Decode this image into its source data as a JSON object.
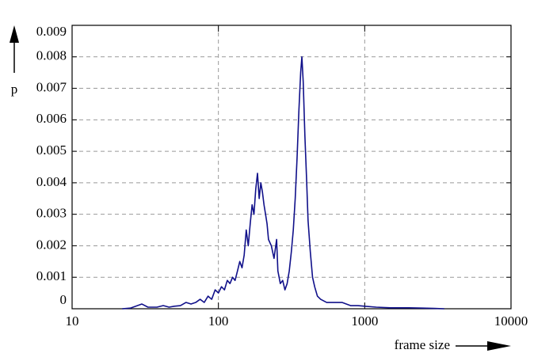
{
  "chart_data": {
    "type": "line",
    "x_label": "frame size",
    "y_label": "p",
    "x": [
      22,
      25,
      28,
      30,
      33,
      38,
      42,
      46,
      50,
      55,
      60,
      65,
      70,
      75,
      80,
      85,
      90,
      95,
      100,
      105,
      110,
      115,
      120,
      125,
      130,
      135,
      140,
      145,
      150,
      155,
      160,
      165,
      170,
      175,
      180,
      185,
      190,
      195,
      200,
      205,
      210,
      215,
      220,
      230,
      240,
      250,
      255,
      265,
      275,
      285,
      295,
      305,
      315,
      325,
      335,
      345,
      355,
      365,
      372,
      380,
      390,
      400,
      410,
      425,
      440,
      455,
      475,
      500,
      550,
      600,
      700,
      800,
      900,
      1000,
      1200,
      1500,
      2000,
      2500,
      3000,
      3500
    ],
    "series": [
      {
        "color": "#10108a",
        "values": [
          0,
          2e-05,
          0.0001,
          0.00015,
          5e-05,
          5e-05,
          0.0001,
          5e-05,
          8e-05,
          0.0001,
          0.0002,
          0.00015,
          0.0002,
          0.0003,
          0.0002,
          0.0004,
          0.0003,
          0.0006,
          0.0005,
          0.0007,
          0.0006,
          0.0009,
          0.0008,
          0.001,
          0.0009,
          0.0012,
          0.0015,
          0.0013,
          0.0017,
          0.0025,
          0.002,
          0.0027,
          0.0033,
          0.003,
          0.0038,
          0.0043,
          0.0035,
          0.004,
          0.0037,
          0.0033,
          0.003,
          0.0027,
          0.0022,
          0.002,
          0.0016,
          0.0022,
          0.0012,
          0.0008,
          0.0009,
          0.0006,
          0.0008,
          0.0012,
          0.0018,
          0.0025,
          0.0035,
          0.0048,
          0.0063,
          0.0075,
          0.008,
          0.0072,
          0.0055,
          0.0042,
          0.0028,
          0.0018,
          0.001,
          0.0007,
          0.0004,
          0.0003,
          0.0002,
          0.0002,
          0.0002,
          0.0001,
          0.0001,
          8e-05,
          5e-05,
          3e-05,
          3e-05,
          2e-05,
          1e-05,
          0
        ]
      }
    ],
    "xlim": [
      10,
      10000
    ],
    "xticks": [
      10,
      100,
      1000,
      10000
    ],
    "xscale": "log",
    "ylim": [
      0,
      0.009
    ],
    "yticks": [
      0,
      0.001,
      0.002,
      0.003,
      0.004,
      0.005,
      0.006,
      0.007,
      0.008,
      0.009
    ],
    "grid": true
  }
}
